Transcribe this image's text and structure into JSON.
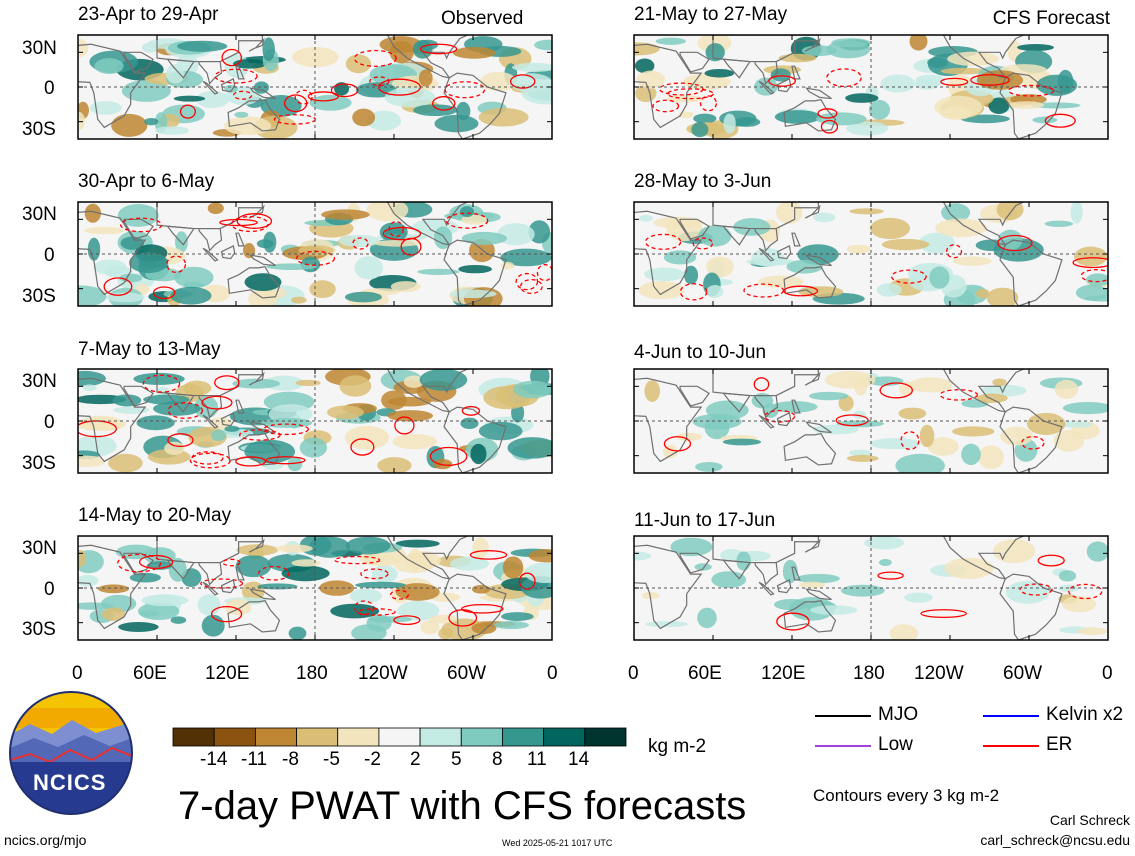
{
  "title": "7-day PWAT with CFS forecasts",
  "left_column_label": "Observed",
  "right_column_label": "CFS Forecast",
  "units": "kg m-2",
  "contour_note": "Contours every 3 kg m-2",
  "author": "Carl Schreck",
  "email": "carl_schreck@ncsu.edu",
  "site": "ncics.org/mjo",
  "timestamp": "Wed 2025-05-21 1017 UTC",
  "logo_text": "NCICS",
  "legend": [
    {
      "label": "MJO",
      "color": "#000000"
    },
    {
      "label": "Kelvin x2",
      "color": "#0000ff"
    },
    {
      "label": "Low",
      "color": "#a040e0"
    },
    {
      "label": "ER",
      "color": "#ff0000"
    }
  ],
  "chart_data": {
    "type": "heatmap",
    "variable": "7-day PWAT anomaly",
    "x_ticks": [
      "0",
      "60E",
      "120E",
      "180",
      "120W",
      "60W",
      "0"
    ],
    "y_ticks": [
      "30N",
      "0",
      "30S"
    ],
    "colorbar": {
      "ticks": [
        "-14",
        "-11",
        "-8",
        "-5",
        "-2",
        "2",
        "5",
        "8",
        "11",
        "14"
      ],
      "colors": [
        "#523107",
        "#8c5310",
        "#be8633",
        "#dbbe75",
        "#f2e4bc",
        "#f5f5f5",
        "#c4eae4",
        "#80cbc0",
        "#36978f",
        "#01665e",
        "#00342e"
      ]
    },
    "panels": [
      {
        "period": "23-Apr to 29-Apr",
        "source": "Observed"
      },
      {
        "period": "30-Apr to 6-May",
        "source": "Observed"
      },
      {
        "period": "7-May to 13-May",
        "source": "Observed"
      },
      {
        "period": "14-May to 20-May",
        "source": "Observed"
      },
      {
        "period": "21-May to 27-May",
        "source": "CFS Forecast"
      },
      {
        "period": "28-May to 3-Jun",
        "source": "CFS Forecast"
      },
      {
        "period": "4-Jun to 10-Jun",
        "source": "CFS Forecast"
      },
      {
        "period": "11-Jun to 17-Jun",
        "source": "CFS Forecast"
      }
    ]
  }
}
